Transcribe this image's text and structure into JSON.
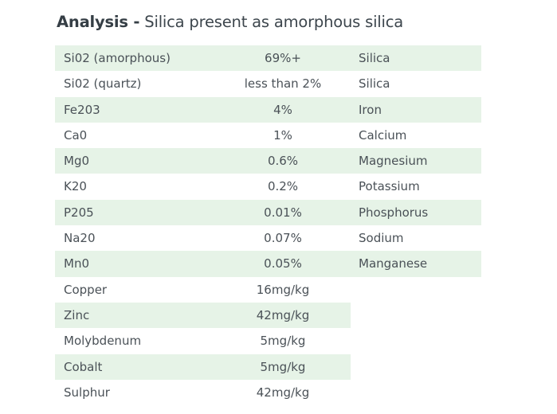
{
  "title": {
    "bold": "Analysis -",
    "rest": " Silica present as amorphous silica"
  },
  "colors": {
    "row_shade": "#e6f3e7",
    "text": "#4a5157",
    "title": "#3d464d"
  },
  "rows": [
    {
      "name": "Si02 (amorphous)",
      "value": "69%+",
      "element": "Silica",
      "shaded": true
    },
    {
      "name": "Si02 (quartz)",
      "value": "less than 2%",
      "element": "Silica",
      "shaded": false
    },
    {
      "name": "Fe203",
      "value": "4%",
      "element": "Iron",
      "shaded": true
    },
    {
      "name": "Ca0",
      "value": "1%",
      "element": "Calcium",
      "shaded": false
    },
    {
      "name": "Mg0",
      "value": "0.6%",
      "element": "Magnesium",
      "shaded": true
    },
    {
      "name": "K20",
      "value": "0.2%",
      "element": "Potassium",
      "shaded": false
    },
    {
      "name": "P205",
      "value": "0.01%",
      "element": "Phosphorus",
      "shaded": true
    },
    {
      "name": "Na20",
      "value": "0.07%",
      "element": "Sodium",
      "shaded": false
    },
    {
      "name": "Mn0",
      "value": "0.05%",
      "element": "Manganese",
      "shaded": true
    },
    {
      "name": "Copper",
      "value": "16mg/kg",
      "element": "",
      "shaded": false
    },
    {
      "name": "Zinc",
      "value": "42mg/kg",
      "element": "",
      "shaded": true
    },
    {
      "name": "Molybdenum",
      "value": "5mg/kg",
      "element": "",
      "shaded": false
    },
    {
      "name": "Cobalt",
      "value": "5mg/kg",
      "element": "",
      "shaded": true
    },
    {
      "name": "Sulphur",
      "value": "42mg/kg",
      "element": "",
      "shaded": false
    }
  ]
}
